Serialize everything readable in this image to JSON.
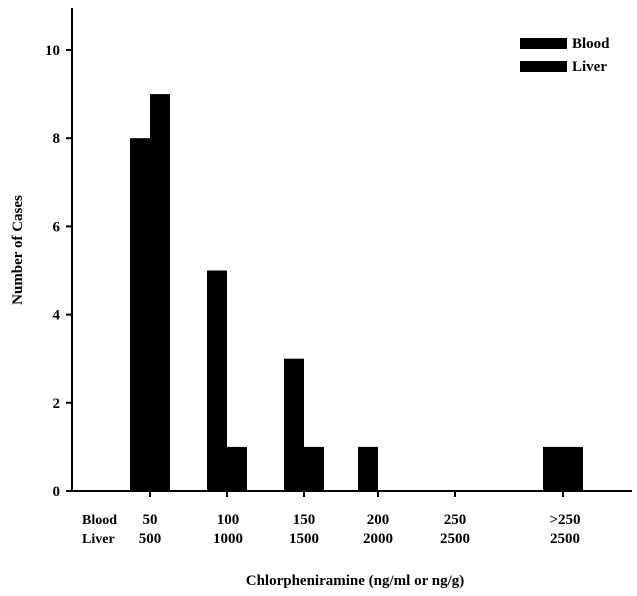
{
  "chart_data": {
    "type": "bar",
    "xlabel": "Chlorpheniramine (ng/ml or ng/g)",
    "ylabel": "Number of Cases",
    "ylim": [
      0,
      10
    ],
    "yticks": [
      "0",
      "2",
      "4",
      "6",
      "8",
      "10"
    ],
    "row_labels": [
      "Blood",
      "Liver"
    ],
    "categories": [
      {
        "blood": "50",
        "liver": "500"
      },
      {
        "blood": "100",
        "liver": "1000"
      },
      {
        "blood": "150",
        "liver": "1500"
      },
      {
        "blood": "200",
        "liver": "2000"
      },
      {
        "blood": "250",
        "liver": "2500"
      },
      {
        "blood": ">250",
        "liver": "2500"
      }
    ],
    "series": [
      {
        "name": "Blood",
        "values": [
          8,
          5,
          3,
          1,
          0,
          1
        ]
      },
      {
        "name": "Liver",
        "values": [
          9,
          1,
          1,
          0,
          0,
          1
        ]
      }
    ],
    "legend_position": "top-right",
    "grid": false,
    "bar_color": "#000000"
  }
}
